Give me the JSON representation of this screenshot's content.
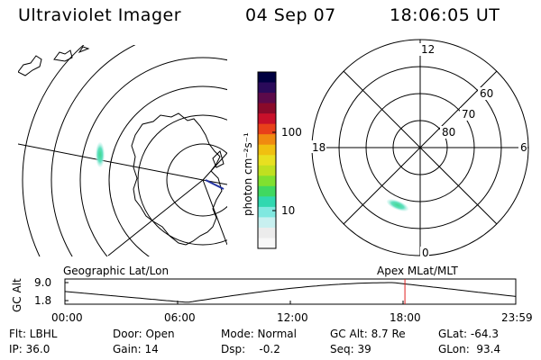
{
  "header": {
    "instrument": "Ultraviolet Imager",
    "date": "04 Sep 07",
    "time": "18:06:05 UT"
  },
  "colorbar": {
    "label": "photon cm⁻²s⁻¹",
    "ticks": [
      "100",
      "10"
    ],
    "colors": [
      "#000040",
      "#2a0a5a",
      "#5c0a4a",
      "#8a0a2a",
      "#c8102a",
      "#e8401a",
      "#f08a10",
      "#f0c010",
      "#e8e020",
      "#c0e020",
      "#80e030",
      "#40d860",
      "#30d8b0",
      "#80e8e0",
      "#c8f0f0",
      "#ececec",
      "#f8f8f8"
    ]
  },
  "polar": {
    "mlt_labels": [
      "12",
      "18",
      "6",
      "0"
    ],
    "mlat_labels": [
      "60",
      "70",
      "80"
    ]
  },
  "panel_labels": {
    "left": "Geographic Lat/Lon",
    "right": "Apex MLat/MLT"
  },
  "altitude_plot": {
    "ylabel": "GC Alt",
    "yticks": [
      "9.0",
      "1.8"
    ],
    "xticks": [
      "00:00",
      "06:00",
      "12:00",
      "18:00",
      "23:59"
    ],
    "marker_time_h": 18.1,
    "marker_color": "#e02020"
  },
  "info": {
    "flt": "Flt: LBHL",
    "ip": "IP: 36.0",
    "door": "Door: Open",
    "gain": "Gain: 14",
    "mode": "Mode: Normal",
    "dsp": "Dsp:    -0.2",
    "gcalt": "GC Alt: 8.7 Re",
    "seq": "Seq: 39",
    "glat": "GLat: -64.3",
    "glon": "GLon:  93.4"
  }
}
